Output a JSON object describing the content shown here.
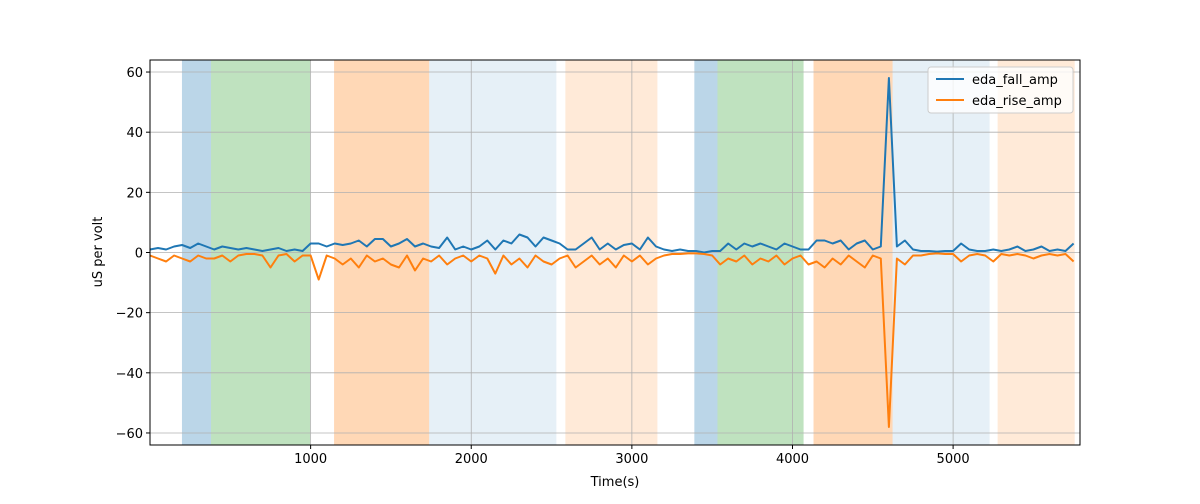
{
  "chart_data": {
    "type": "line",
    "title": "",
    "xlabel": "Time(s)",
    "ylabel": "uS per volt",
    "xlim": [
      0,
      5790
    ],
    "ylim": [
      -64,
      64
    ],
    "xticks": [
      1000,
      2000,
      3000,
      4000,
      5000
    ],
    "yticks": [
      -60,
      -40,
      -20,
      0,
      20,
      40,
      60
    ],
    "grid": true,
    "legend_position": "top-right",
    "x_start": 0,
    "x_step": 50,
    "series": [
      {
        "name": "eda_fall_amp",
        "color": "#1f77b4",
        "values": [
          1,
          1.5,
          1,
          2,
          2.5,
          1.5,
          3,
          2,
          1,
          2,
          1.5,
          1,
          1.5,
          1,
          0.5,
          1,
          1.5,
          0.5,
          1,
          0.5,
          3,
          3,
          2,
          3,
          2.5,
          3,
          4,
          2,
          4.5,
          4.5,
          2,
          3,
          4.5,
          2,
          3,
          2,
          1.5,
          5,
          1,
          2,
          1,
          2,
          4,
          1,
          4,
          3,
          6,
          5,
          2,
          5,
          4,
          3,
          1,
          1,
          3,
          5,
          1,
          3,
          1,
          2.5,
          3,
          1,
          5,
          2,
          1,
          0.5,
          1,
          0.5,
          0.5,
          0,
          0.5,
          0.5,
          3,
          1,
          3,
          2,
          3,
          2,
          1,
          3,
          2,
          1,
          1,
          4,
          4,
          3,
          4,
          1,
          3,
          4,
          1,
          2,
          58,
          2,
          4,
          1,
          0.5,
          0.5,
          0.3,
          0.5,
          0.5,
          3,
          1,
          0.5,
          0.5,
          1,
          0.5,
          1,
          2,
          0.5,
          1,
          2,
          0.5,
          1,
          0.5,
          3
        ]
      },
      {
        "name": "eda_rise_amp",
        "color": "#ff7f0e",
        "values": [
          -1,
          -2,
          -3,
          -1,
          -2,
          -3,
          -1,
          -2,
          -2,
          -1,
          -3,
          -1,
          -0.5,
          -0.5,
          -1,
          -5,
          -1,
          -0.5,
          -3,
          -1,
          -1,
          -9,
          -1,
          -2,
          -4,
          -2,
          -5,
          -1,
          -3,
          -2,
          -4,
          -5,
          -1,
          -6,
          -2,
          -3,
          -1,
          -4,
          -2,
          -1,
          -3,
          -1,
          -2,
          -7,
          -1,
          -4,
          -2,
          -5,
          -1,
          -3,
          -4,
          -2,
          -1,
          -5,
          -3,
          -1,
          -4,
          -2,
          -5,
          -1,
          -3,
          -1,
          -4,
          -2,
          -1,
          -0.5,
          -0.5,
          -0.3,
          -0.3,
          -0.5,
          -1,
          -4,
          -2,
          -3,
          -1,
          -4,
          -2,
          -3,
          -1,
          -4,
          -2,
          -1,
          -4,
          -3,
          -5,
          -2,
          -4,
          -1,
          -3,
          -5,
          -1,
          -2,
          -58,
          -2,
          -4,
          -1,
          -1,
          -0.5,
          -0.3,
          -0.5,
          -0.5,
          -3,
          -1,
          -0.5,
          -1,
          -3,
          -0.5,
          -1,
          -0.5,
          -1,
          -2,
          -1,
          -0.5,
          -1,
          -0.5,
          -3
        ]
      }
    ],
    "shaded_spans": [
      {
        "start": 199,
        "end": 380,
        "color": "#1f77b4",
        "opacity": 0.3
      },
      {
        "start": 380,
        "end": 997,
        "color": "#2ca02c",
        "opacity": 0.3
      },
      {
        "start": 1146,
        "end": 1738,
        "color": "#ff7f0e",
        "opacity": 0.3
      },
      {
        "start": 1738,
        "end": 2530,
        "color": "#1f77b4",
        "opacity": 0.11
      },
      {
        "start": 2586,
        "end": 3159,
        "color": "#ff7f0e",
        "opacity": 0.16
      },
      {
        "start": 3389,
        "end": 3533,
        "color": "#1f77b4",
        "opacity": 0.3
      },
      {
        "start": 3533,
        "end": 4069,
        "color": "#2ca02c",
        "opacity": 0.3
      },
      {
        "start": 4131,
        "end": 4623,
        "color": "#ff7f0e",
        "opacity": 0.3
      },
      {
        "start": 4623,
        "end": 5227,
        "color": "#1f77b4",
        "opacity": 0.11
      },
      {
        "start": 5277,
        "end": 5757,
        "color": "#ff7f0e",
        "opacity": 0.16
      }
    ]
  }
}
